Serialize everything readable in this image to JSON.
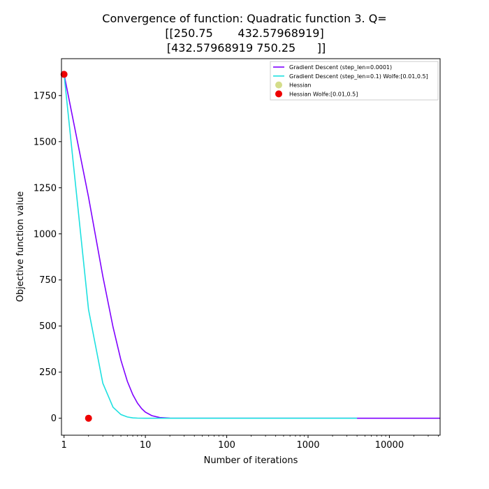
{
  "chart_data": {
    "type": "line",
    "title_lines": [
      "Convergence of function: Quadratic function 3. Q=",
      "[[250.75       432.57968919]",
      " [432.57968919 750.25      ]]"
    ],
    "xlabel": "Number of iterations",
    "ylabel": "Objective function value",
    "x_scale": "log",
    "xlim": [
      0.93,
      42000
    ],
    "ylim": [
      -92,
      1950
    ],
    "x_ticks": [
      1,
      10,
      100,
      1000,
      10000
    ],
    "x_tick_labels": [
      "1",
      "10",
      "100",
      "1000",
      "10000"
    ],
    "y_ticks": [
      0,
      250,
      500,
      750,
      1000,
      1250,
      1500,
      1750
    ],
    "y_tick_labels": [
      "0",
      "250",
      "500",
      "750",
      "1000",
      "1250",
      "1500",
      "1750"
    ],
    "grid": false,
    "legend_position": "top-right",
    "series": [
      {
        "name": "Gradient Descent (step_len=0.0001)",
        "kind": "line",
        "color": "#7f00ff",
        "x": [
          1,
          2,
          3,
          4,
          5,
          6,
          7,
          8,
          9,
          10,
          12,
          15,
          20,
          30,
          50,
          100,
          1000,
          10000,
          42000
        ],
        "y": [
          1865,
          1200,
          770,
          495,
          315,
          200,
          128,
          82,
          52,
          33,
          14,
          4,
          0.5,
          0,
          0,
          0,
          0,
          0,
          0
        ]
      },
      {
        "name": "Gradient Descent (step_len=0.1) Wolfe:[0.01,0.5]",
        "kind": "line",
        "color": "#1ee0e0",
        "x": [
          1,
          2,
          3,
          4,
          5,
          6,
          7,
          8,
          10,
          15,
          100,
          1000,
          4000
        ],
        "y": [
          1865,
          590,
          190,
          60,
          20,
          7,
          2,
          0.7,
          0,
          0,
          0,
          0,
          0
        ]
      },
      {
        "name": "Hessian",
        "kind": "scatter",
        "color": "#d4dd8a",
        "x": [],
        "y": []
      },
      {
        "name": "Hessian Wolfe:[0.01,0.5]",
        "kind": "scatter",
        "color": "#ee0000",
        "x": [
          1,
          2
        ],
        "y": [
          1865,
          0
        ]
      }
    ]
  }
}
